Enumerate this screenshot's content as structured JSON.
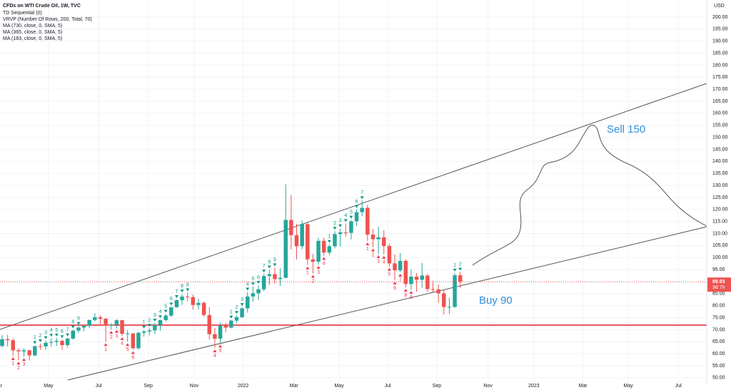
{
  "chart_data": {
    "type": "candlestick",
    "title": "CFDs on WTI Crude Oil, 1W, TVC",
    "indicators": [
      "TD Sequential (0)",
      "VRVP (Number Of Rows, 200, Total, 70)",
      "MA (730, close, 0, SMA, 5)",
      "MA (365, close, 0, SMA, 5)",
      "MA (183, close, 0, SMA, 5)"
    ],
    "currency": "USD",
    "countdown": "3d 7h",
    "annotations": [
      "Sell 150",
      "Buy 90"
    ],
    "up_color": "#26a69a",
    "down_color": "#ef5350",
    "open": [
      63.22,
      66.09,
      65.61,
      61.42,
      60.97,
      61.45,
      59.32,
      63.13,
      63.07,
      64.58,
      64.9,
      65.37,
      63.58,
      66.32,
      69.62,
      70.91,
      71.64,
      74.05,
      75.16,
      74.56,
      71.81,
      72.07,
      73.95,
      68.28,
      68.44,
      62.32,
      68.74,
      69.29,
      69.72,
      71.97,
      74.01,
      75.88,
      79.35,
      82.28,
      83.76,
      83.57,
      80.27,
      81.17,
      76.1,
      68.15,
      66.26,
      71.67,
      70.86,
      73.79,
      75.21,
      78.9,
      83.82,
      85.14,
      86.82,
      92.31,
      93.1,
      91.07,
      91.59,
      115.68,
      109.33,
      104.7,
      113.9,
      99.27,
      98.26,
      106.95,
      102.07,
      104.69,
      109.77,
      110.49,
      110.28,
      115.07,
      118.87,
      120.67,
      109.56,
      107.62,
      108.43,
      104.79,
      97.59,
      94.7,
      98.62,
      89.01,
      92.09,
      90.77,
      92.52,
      86.87,
      86.79,
      85.11,
      79.43,
      79.49,
      92.64
    ],
    "high": [
      67.9,
      67.9,
      66.4,
      62.3,
      62.3,
      61.6,
      63.5,
      64.2,
      65.5,
      66.5,
      66.6,
      65.9,
      66.7,
      70.0,
      71.4,
      72.0,
      74.2,
      76.9,
      76.0,
      75.0,
      72.7,
      74.4,
      74.2,
      69.9,
      68.6,
      69.1,
      69.9,
      70.6,
      72.8,
      74.2,
      76.5,
      79.5,
      82.6,
      84.9,
      85.4,
      84.6,
      82.9,
      81.8,
      79.4,
      70.7,
      72.9,
      72.9,
      74.1,
      76.0,
      79.3,
      85.7,
      87.9,
      88.5,
      93.2,
      94.9,
      95.8,
      95.6,
      130.5,
      126.0,
      114.0,
      115.4,
      114.5,
      101.6,
      108.2,
      108.3,
      105.5,
      111.0,
      112.0,
      114.2,
      115.6,
      120.0,
      123.7,
      122.0,
      111.9,
      112.9,
      111.4,
      105.7,
      101.3,
      101.9,
      99.3,
      95.1,
      93.5,
      97.7,
      93.2,
      90.4,
      88.8,
      86.7,
      83.3,
      93.6,
      94.0
    ],
    "low": [
      62.7,
      63.0,
      59.2,
      57.3,
      58.8,
      57.3,
      59.0,
      61.6,
      61.7,
      62.9,
      63.3,
      61.6,
      62.6,
      65.9,
      68.6,
      69.4,
      70.6,
      73.4,
      71.9,
      65.0,
      70.1,
      70.5,
      67.5,
      65.0,
      61.7,
      61.7,
      67.1,
      67.6,
      68.2,
      69.6,
      73.5,
      75.3,
      79.2,
      80.4,
      81.8,
      78.3,
      78.3,
      75.4,
      65.9,
      62.4,
      64.4,
      69.0,
      70.6,
      72.8,
      74.9,
      77.1,
      81.7,
      82.2,
      86.0,
      88.7,
      89.1,
      88.2,
      91.4,
      103.4,
      99.2,
      103.5,
      96.9,
      93.4,
      97.1,
      100.8,
      101.0,
      103.8,
      104.6,
      108.7,
      107.5,
      113.1,
      117.1,
      106.9,
      104.3,
      101.6,
      101.3,
      96.3,
      90.6,
      93.9,
      87.6,
      86.7,
      85.8,
      87.4,
      85.7,
      85.7,
      81.2,
      76.3,
      76.6,
      79.1,
      87.4
    ],
    "close": [
      66.09,
      65.61,
      61.42,
      60.97,
      61.45,
      59.32,
      63.13,
      63.07,
      64.58,
      64.9,
      65.37,
      63.58,
      66.32,
      69.62,
      70.91,
      71.64,
      74.05,
      75.16,
      74.56,
      71.81,
      72.07,
      73.95,
      68.28,
      68.44,
      62.32,
      68.74,
      69.29,
      69.72,
      71.97,
      74.01,
      75.88,
      79.35,
      82.28,
      83.76,
      83.57,
      80.27,
      81.17,
      76.1,
      68.15,
      66.26,
      71.67,
      70.86,
      73.79,
      75.21,
      78.9,
      83.82,
      85.14,
      86.82,
      92.31,
      93.1,
      91.07,
      91.59,
      115.68,
      109.33,
      104.7,
      113.9,
      99.27,
      98.26,
      106.95,
      102.07,
      104.69,
      109.77,
      110.49,
      110.28,
      115.07,
      118.87,
      120.67,
      109.56,
      107.62,
      108.43,
      104.79,
      97.59,
      94.7,
      98.62,
      89.01,
      92.09,
      90.77,
      92.52,
      86.87,
      86.79,
      85.11,
      79.43,
      79.49,
      92.64,
      89.93
    ],
    "td_sequential": [
      {
        "dir": "up",
        "candles": [
          6,
          7,
          8,
          9,
          10,
          11,
          12,
          13,
          14
        ],
        "counts": [
          1,
          2,
          3,
          4,
          5,
          6,
          7,
          8,
          9
        ]
      },
      {
        "dir": "up",
        "candles": [
          26,
          27,
          28,
          29,
          30,
          31,
          32,
          33,
          34
        ],
        "counts": [
          1,
          2,
          3,
          4,
          5,
          6,
          7,
          8,
          9
        ]
      },
      {
        "dir": "up",
        "candles": [
          42,
          43,
          44,
          45,
          46,
          47,
          48,
          49,
          50
        ],
        "counts": [
          1,
          2,
          3,
          4,
          5,
          6,
          7,
          8,
          9
        ]
      },
      {
        "dir": "up",
        "candles": [
          60,
          61,
          62,
          63,
          64,
          65,
          66
        ],
        "counts": [
          1,
          2,
          3,
          4,
          5,
          6,
          7
        ]
      },
      {
        "dir": "up",
        "candles": [
          83,
          84
        ],
        "counts": [
          1,
          2
        ]
      },
      {
        "dir": "down",
        "candles": [
          2,
          3,
          4
        ],
        "counts": [
          1,
          2,
          3
        ]
      },
      {
        "dir": "down",
        "candles": [
          19,
          20,
          21,
          22,
          23,
          24
        ],
        "counts": [
          1,
          2,
          3,
          4,
          5,
          6
        ]
      },
      {
        "dir": "down",
        "candles": [
          39,
          40
        ],
        "counts": [
          4,
          5
        ]
      },
      {
        "dir": "down",
        "candles": [
          56,
          57,
          58,
          59
        ],
        "counts": [
          1,
          2,
          3,
          4
        ]
      },
      {
        "dir": "down",
        "candles": [
          67,
          68,
          69,
          70,
          71,
          72,
          73,
          74,
          75
        ],
        "counts": [
          1,
          2,
          3,
          4,
          5,
          6,
          7,
          8,
          9
        ]
      }
    ],
    "xlim": [
      -0.39,
      129.2
    ],
    "xticks": [
      {
        "value": -0.8,
        "label": "Mar"
      },
      {
        "value": 8.5,
        "label": "May"
      },
      {
        "value": 17.7,
        "label": "Jul"
      },
      {
        "value": 26.8,
        "label": "Sep"
      },
      {
        "value": 35.2,
        "label": "Nov"
      },
      {
        "value": 44.2,
        "label": "2022"
      },
      {
        "value": 53.5,
        "label": "Mar"
      },
      {
        "value": 61.8,
        "label": "May"
      },
      {
        "value": 70.7,
        "label": "Jul"
      },
      {
        "value": 79.7,
        "label": "Sep"
      },
      {
        "value": 89.1,
        "label": "Nov"
      },
      {
        "value": 97.5,
        "label": "2023"
      },
      {
        "value": 106.5,
        "label": "Mar"
      },
      {
        "value": 114.8,
        "label": "May"
      },
      {
        "value": 124,
        "label": "Jul"
      }
    ],
    "ylim": [
      47.6,
      207.1
    ],
    "yticks": [
      {
        "value": 50,
        "label": "50.00"
      },
      {
        "value": 55,
        "label": "55.00"
      },
      {
        "value": 60,
        "label": "60.00"
      },
      {
        "value": 65,
        "label": "65.00"
      },
      {
        "value": 70,
        "label": "70.00"
      },
      {
        "value": 75,
        "label": "75.00"
      },
      {
        "value": 80,
        "label": "80.00"
      },
      {
        "value": 85,
        "label": "85.00"
      },
      {
        "value": 90,
        "label": "90.00"
      },
      {
        "value": 95,
        "label": "95.00"
      },
      {
        "value": 100,
        "label": "100.00"
      },
      {
        "value": 105,
        "label": "105.00"
      },
      {
        "value": 110,
        "label": "110.00"
      },
      {
        "value": 115,
        "label": "115.00"
      },
      {
        "value": 120,
        "label": "120.00"
      },
      {
        "value": 125,
        "label": "125.00"
      },
      {
        "value": 130,
        "label": "130.00"
      },
      {
        "value": 135,
        "label": "135.00"
      },
      {
        "value": 140,
        "label": "140.00"
      },
      {
        "value": 145,
        "label": "145.00"
      },
      {
        "value": 150,
        "label": "150.00"
      },
      {
        "value": 155,
        "label": "155.00"
      },
      {
        "value": 160,
        "label": "160.00"
      },
      {
        "value": 165,
        "label": "165.00"
      },
      {
        "value": 170,
        "label": "170.00"
      },
      {
        "value": 175,
        "label": "175.00"
      },
      {
        "value": 180,
        "label": "180.00"
      },
      {
        "value": 185,
        "label": "185.00"
      },
      {
        "value": 190,
        "label": "190.00"
      },
      {
        "value": 195,
        "label": "195.00"
      },
      {
        "value": 200,
        "label": "200.00"
      }
    ],
    "grid": true
  }
}
